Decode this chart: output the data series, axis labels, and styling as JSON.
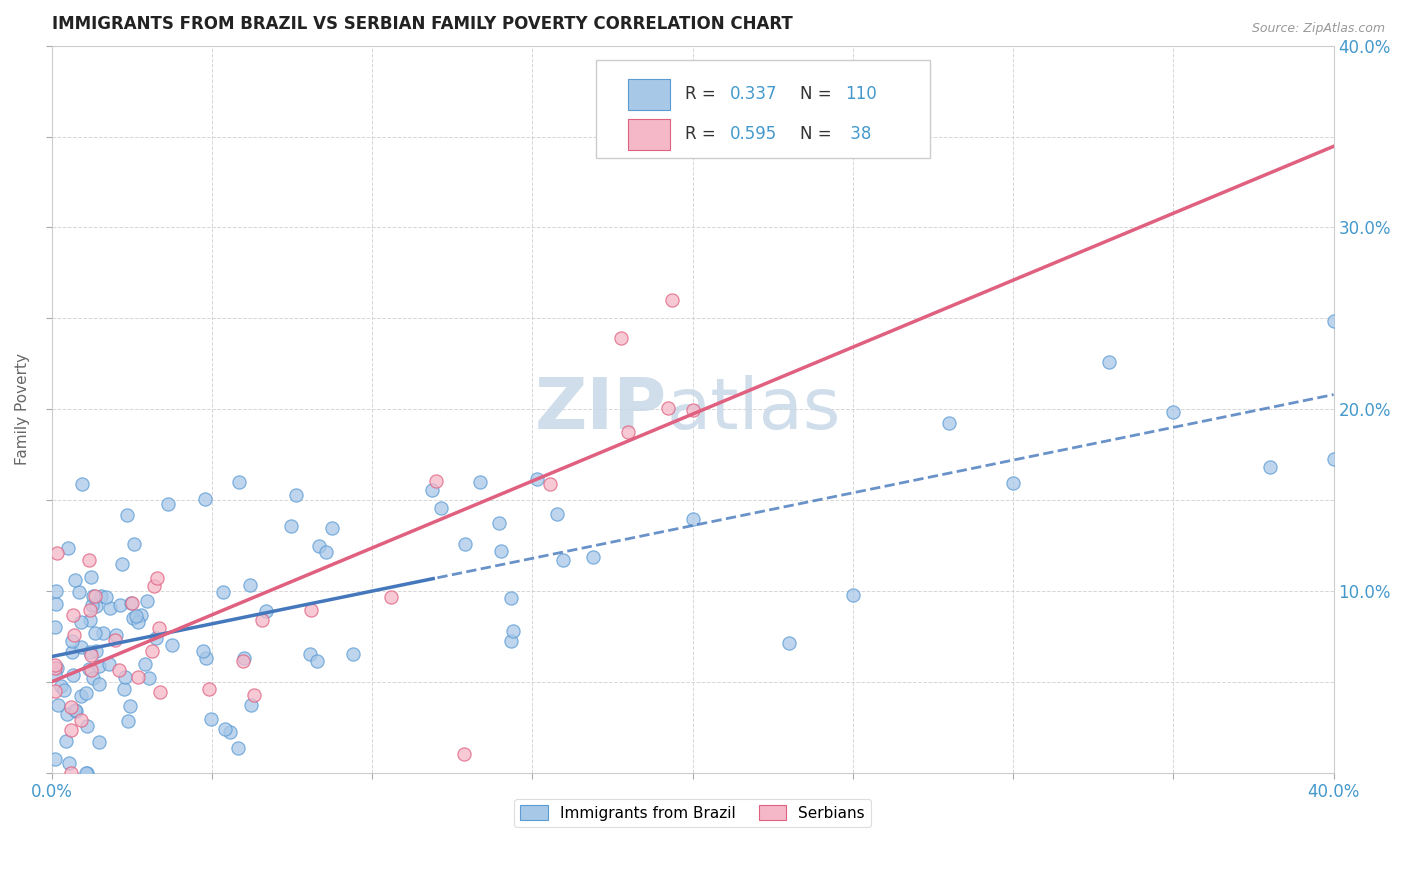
{
  "title": "IMMIGRANTS FROM BRAZIL VS SERBIAN FAMILY POVERTY CORRELATION CHART",
  "source": "Source: ZipAtlas.com",
  "ylabel": "Family Poverty",
  "legend_label1": "Immigrants from Brazil",
  "legend_label2": "Serbians",
  "r1": 0.337,
  "n1": 110,
  "r2": 0.595,
  "n2": 38,
  "color1": "#a8c8e8",
  "color2": "#f4b8c8",
  "edge_color1": "#5b9bd5",
  "edge_color2": "#e06080",
  "line_color1": "#4477bb",
  "line_color2": "#e06080",
  "xlim": [
    0.0,
    0.4
  ],
  "ylim": [
    0.0,
    0.4
  ],
  "xticks": [
    0.0,
    0.05,
    0.1,
    0.15,
    0.2,
    0.25,
    0.3,
    0.35,
    0.4
  ],
  "yticks": [
    0.0,
    0.05,
    0.1,
    0.15,
    0.2,
    0.25,
    0.3,
    0.35,
    0.4
  ],
  "background_color": "#ffffff",
  "grid_color": "#cccccc",
  "watermark_zip": "ZIP",
  "watermark_atlas": "atlas",
  "title_color": "#222222",
  "axis_label_color": "#666666",
  "tick_color_blue": "#4499cc",
  "legend_text_color": "#333333",
  "legend_num_color": "#4499cc"
}
